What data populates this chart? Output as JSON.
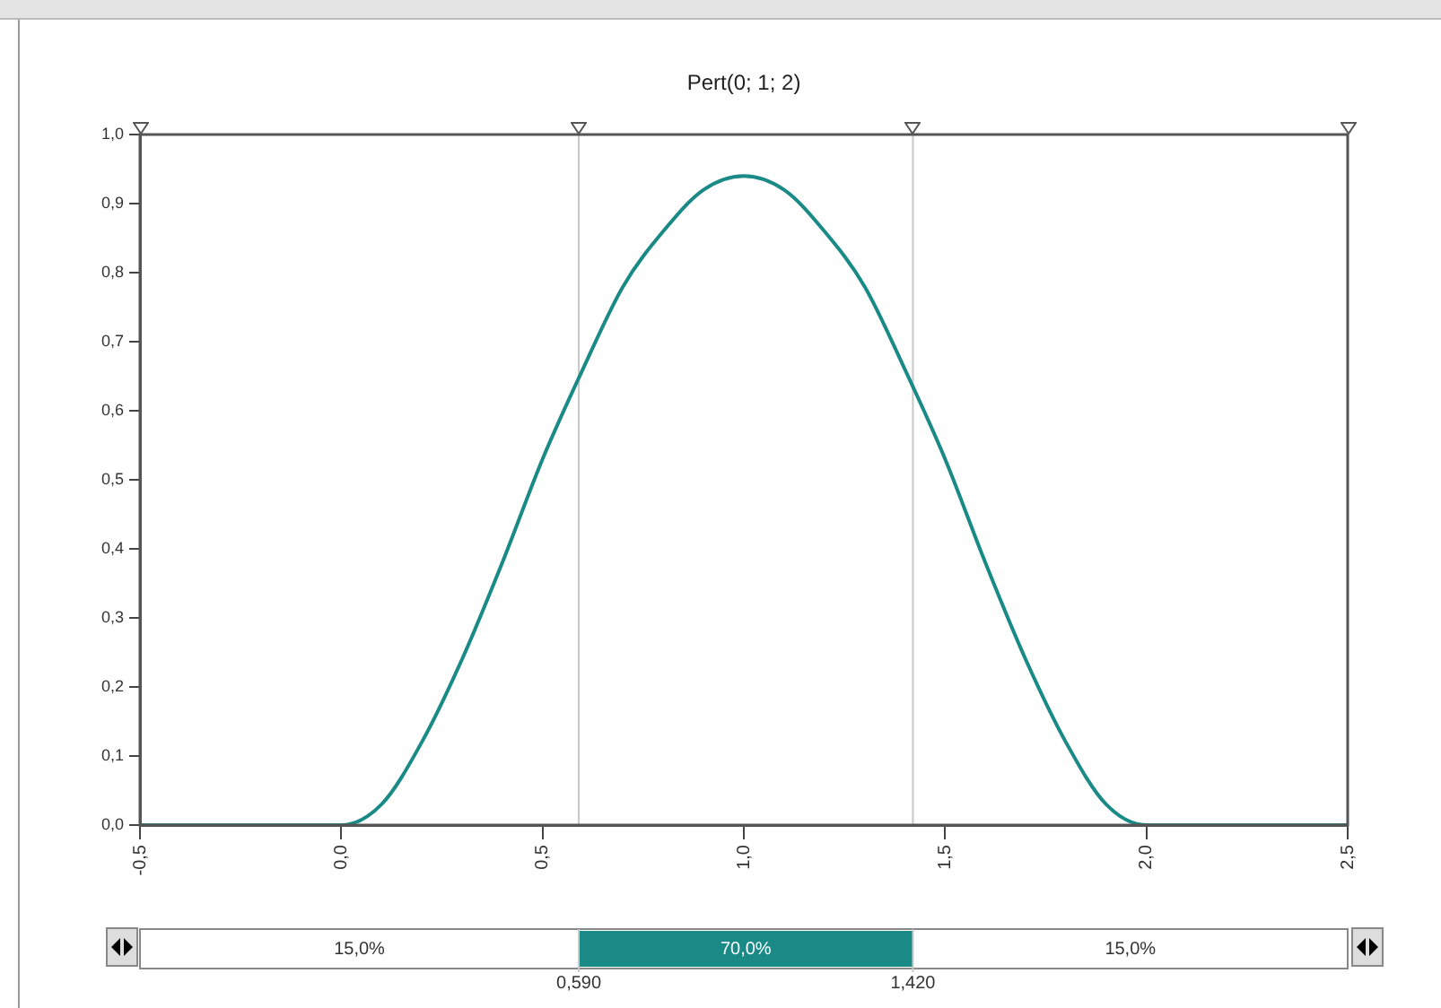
{
  "chart_data": {
    "type": "line",
    "title": "Pert(0; 1; 2)",
    "x": [
      -0.5,
      0,
      0.1,
      0.2,
      0.3,
      0.4,
      0.5,
      0.6,
      0.7,
      0.8,
      0.9,
      1,
      1.1,
      1.2,
      1.3,
      1.4,
      1.5,
      1.6,
      1.7,
      1.8,
      1.9,
      2,
      2.5
    ],
    "series": [
      {
        "color": "#1a8a87",
        "values": [
          0,
          0,
          0.03,
          0.12,
          0.24,
          0.38,
          0.53,
          0.66,
          0.78,
          0.86,
          0.92,
          0.94,
          0.92,
          0.86,
          0.78,
          0.66,
          0.53,
          0.38,
          0.24,
          0.12,
          0.03,
          0,
          0
        ]
      }
    ],
    "xlim": [
      -0.5,
      2.5
    ],
    "xticks": [
      {
        "value": -0.5,
        "label": "-0,5"
      },
      {
        "value": 0,
        "label": "0,0"
      },
      {
        "value": 0.5,
        "label": "0,5"
      },
      {
        "value": 1,
        "label": "1,0"
      },
      {
        "value": 1.5,
        "label": "1,5"
      },
      {
        "value": 2,
        "label": "2,0"
      },
      {
        "value": 2.5,
        "label": "2,5"
      }
    ],
    "ylim": [
      0,
      1
    ],
    "yticks": [
      {
        "value": 0,
        "label": "0,0"
      },
      {
        "value": 0.1,
        "label": "0,1"
      },
      {
        "value": 0.2,
        "label": "0,2"
      },
      {
        "value": 0.3,
        "label": "0,3"
      },
      {
        "value": 0.4,
        "label": "0,4"
      },
      {
        "value": 0.5,
        "label": "0,5"
      },
      {
        "value": 0.6,
        "label": "0,6"
      },
      {
        "value": 0.7,
        "label": "0,7"
      },
      {
        "value": 0.8,
        "label": "0,8"
      },
      {
        "value": 0.9,
        "label": "0,9"
      },
      {
        "value": 1,
        "label": "1,0"
      }
    ],
    "ref_lines": [
      {
        "axis": "x",
        "value": 0.59,
        "color": "#c8c8c8"
      },
      {
        "axis": "x",
        "value": 1.42,
        "color": "#c8c8c8"
      }
    ],
    "annotations": [
      "15,0%",
      "70,0%",
      "15,0%",
      "0,590",
      "1,420"
    ],
    "grid": false,
    "legend": false,
    "marker": "none",
    "line_style": "solid"
  }
}
